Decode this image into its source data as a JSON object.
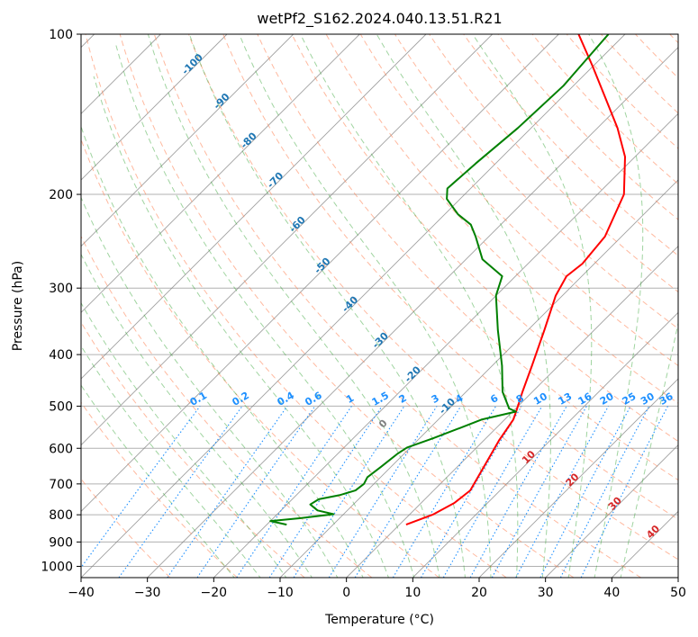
{
  "chart_data": {
    "type": "line",
    "title": "wetPf2_S162.2024.040.13.51.R21",
    "xlabel": "Temperature (°C)",
    "ylabel": "Pressure (hPa)",
    "xlim": [
      -40,
      50
    ],
    "ylim": [
      1050,
      100
    ],
    "y_scale": "log",
    "grid": true,
    "x_ticks": [
      -40,
      -30,
      -20,
      -10,
      0,
      10,
      20,
      30,
      40,
      50
    ],
    "x_tick_labels": [
      "−40",
      "−30",
      "−20",
      "−10",
      "0",
      "10",
      "20",
      "30",
      "40",
      "50"
    ],
    "y_ticks": [
      100,
      200,
      300,
      400,
      500,
      600,
      700,
      800,
      900,
      1000
    ],
    "y_tick_labels": [
      "100",
      "200",
      "300",
      "400",
      "500",
      "600",
      "700",
      "800",
      "900",
      "1000"
    ],
    "skew_degrees": 45,
    "series": [
      {
        "color": "#ff0000",
        "points": [
          {
            "p": 835,
            "t": 1.0
          },
          {
            "p": 800,
            "t": 3.5
          },
          {
            "p": 760,
            "t": 5.0
          },
          {
            "p": 720,
            "t": 5.5
          },
          {
            "p": 650,
            "t": 4.0
          },
          {
            "p": 580,
            "t": 2.3
          },
          {
            "p": 530,
            "t": 1.3
          },
          {
            "p": 507,
            "t": 0.3
          },
          {
            "p": 470,
            "t": -1.5
          },
          {
            "p": 420,
            "t": -4.0
          },
          {
            "p": 360,
            "t": -7.5
          },
          {
            "p": 310,
            "t": -11.0
          },
          {
            "p": 285,
            "t": -12.3
          },
          {
            "p": 270,
            "t": -11.8
          },
          {
            "p": 240,
            "t": -12.5
          },
          {
            "p": 200,
            "t": -16.0
          },
          {
            "p": 170,
            "t": -21.5
          },
          {
            "p": 150,
            "t": -27.0
          },
          {
            "p": 130,
            "t": -34.0
          },
          {
            "p": 115,
            "t": -40.0
          },
          {
            "p": 100,
            "t": -47.0
          }
        ]
      },
      {
        "color": "#008000",
        "points": [
          {
            "p": 835,
            "t": -17.0
          },
          {
            "p": 822,
            "t": -20.0
          },
          {
            "p": 812,
            "t": -16.0
          },
          {
            "p": 798,
            "t": -11.5
          },
          {
            "p": 785,
            "t": -14.5
          },
          {
            "p": 765,
            "t": -16.5
          },
          {
            "p": 748,
            "t": -16.0
          },
          {
            "p": 735,
            "t": -13.5
          },
          {
            "p": 720,
            "t": -11.8
          },
          {
            "p": 700,
            "t": -11.5
          },
          {
            "p": 680,
            "t": -12.0
          },
          {
            "p": 650,
            "t": -11.5
          },
          {
            "p": 615,
            "t": -11.0
          },
          {
            "p": 598,
            "t": -10.5
          },
          {
            "p": 575,
            "t": -8.0
          },
          {
            "p": 550,
            "t": -5.5
          },
          {
            "p": 530,
            "t": -3.5
          },
          {
            "p": 512,
            "t": 0.5
          },
          {
            "p": 505,
            "t": -1.0
          },
          {
            "p": 470,
            "t": -4.5
          },
          {
            "p": 420,
            "t": -8.5
          },
          {
            "p": 360,
            "t": -14.5
          },
          {
            "p": 310,
            "t": -20.0
          },
          {
            "p": 285,
            "t": -22.0
          },
          {
            "p": 265,
            "t": -27.5
          },
          {
            "p": 240,
            "t": -32.0
          },
          {
            "p": 228,
            "t": -34.5
          },
          {
            "p": 218,
            "t": -38.0
          },
          {
            "p": 204,
            "t": -42.0
          },
          {
            "p": 195,
            "t": -43.5
          },
          {
            "p": 175,
            "t": -43.0
          },
          {
            "p": 150,
            "t": -42.0
          },
          {
            "p": 125,
            "t": -41.5
          },
          {
            "p": 100,
            "t": -42.5
          }
        ]
      }
    ],
    "background_lines": {
      "dry_adiabat_color": "#ff7f50",
      "moist_adiabat_color": "#2ca02c",
      "mixing_ratio_color": "#1e90ff",
      "isotherm_color": "#808080",
      "isobar_color": "#b0b0b0",
      "reference_curve_color": "#d2b48c"
    },
    "isotherm_labels": {
      "color": "#1f77b4",
      "items": [
        {
          "text": "-100",
          "t": -100,
          "p": 115
        },
        {
          "text": "-90",
          "t": -90,
          "p": 135
        },
        {
          "text": "-80",
          "t": -80,
          "p": 160
        },
        {
          "text": "-70",
          "t": -70,
          "p": 190
        },
        {
          "text": "-60",
          "t": -60,
          "p": 230
        },
        {
          "text": "-50",
          "t": -50,
          "p": 275
        },
        {
          "text": "-40",
          "t": -40,
          "p": 325
        },
        {
          "text": "-30",
          "t": -30,
          "p": 380
        },
        {
          "text": "-20",
          "t": -20,
          "p": 440
        },
        {
          "text": "-10",
          "t": -10,
          "p": 505
        }
      ]
    },
    "mixing_ratio_labels": {
      "color": "#1e90ff",
      "items": [
        "0.1",
        "0.2",
        "0.4",
        "0.6",
        "1",
        "1.5",
        "2",
        "3",
        "4",
        "6",
        "8",
        "10",
        "13",
        "16",
        "20",
        "25",
        "30",
        "36"
      ]
    },
    "wet_bulb_labels": {
      "items": [
        {
          "text": "0",
          "color": "#7f7f7f",
          "t": -17.0,
          "p": 545
        },
        {
          "text": "10",
          "color": "#d62728",
          "t": 10.0,
          "p": 630
        },
        {
          "text": "20",
          "color": "#d62728",
          "t": 20.0,
          "p": 695
        },
        {
          "text": "30",
          "color": "#d62728",
          "t": 30.0,
          "p": 770
        },
        {
          "text": "40",
          "color": "#d62728",
          "t": 40.0,
          "p": 870
        }
      ]
    }
  }
}
